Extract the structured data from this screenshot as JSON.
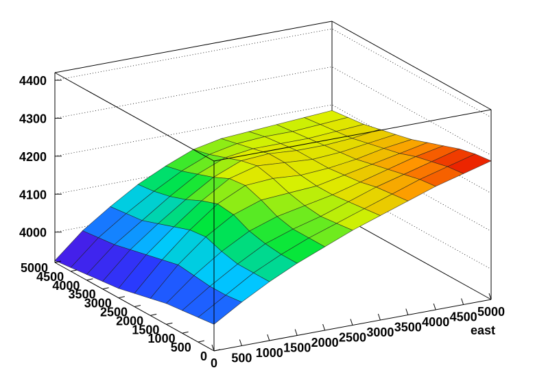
{
  "chart_data": {
    "type": "surface",
    "title": "",
    "xlabel": "east",
    "ylabel": "",
    "zlabel": "",
    "xlim": [
      0,
      5000
    ],
    "ylim": [
      0,
      5000
    ],
    "zlim": [
      3920,
      4420
    ],
    "x_ticks": [
      "0",
      "500",
      "1000",
      "1500",
      "2000",
      "2500",
      "3000",
      "3500",
      "4000",
      "4500",
      "5000"
    ],
    "y_ticks": [
      "0",
      "500",
      "1000",
      "1500",
      "2000",
      "2500",
      "3000",
      "3500",
      "4000",
      "4500",
      "5000"
    ],
    "z_ticks": [
      "4000",
      "4100",
      "4200",
      "4300",
      "4400"
    ],
    "x": [
      0,
      500,
      1000,
      1500,
      2000,
      2500,
      3000,
      3500,
      4000,
      4500,
      5000
    ],
    "y": [
      0,
      500,
      1000,
      1500,
      2000,
      2500,
      3000,
      3500,
      4000,
      4500,
      5000
    ],
    "z": [
      [
        3990,
        4035,
        4075,
        4110,
        4140,
        4170,
        4195,
        4220,
        4245,
        4265,
        4285
      ],
      [
        3985,
        4030,
        4075,
        4110,
        4140,
        4165,
        4190,
        4215,
        4240,
        4260,
        4280
      ],
      [
        3980,
        4030,
        4075,
        4115,
        4140,
        4160,
        4185,
        4210,
        4230,
        4250,
        4270
      ],
      [
        3975,
        4035,
        4085,
        4125,
        4150,
        4165,
        4180,
        4200,
        4220,
        4240,
        4255
      ],
      [
        3965,
        4040,
        4100,
        4145,
        4170,
        4175,
        4180,
        4195,
        4210,
        4225,
        4240
      ],
      [
        3955,
        4030,
        4095,
        4150,
        4185,
        4190,
        4185,
        4190,
        4200,
        4215,
        4225
      ],
      [
        3945,
        4020,
        4080,
        4135,
        4180,
        4200,
        4195,
        4190,
        4195,
        4205,
        4215
      ],
      [
        3940,
        4010,
        4065,
        4115,
        4160,
        4190,
        4195,
        4190,
        4190,
        4195,
        4205
      ],
      [
        3935,
        4000,
        4050,
        4100,
        4145,
        4175,
        4185,
        4185,
        4185,
        4190,
        4195
      ],
      [
        3930,
        3995,
        4045,
        4090,
        4130,
        4160,
        4175,
        4180,
        4180,
        4185,
        4190
      ],
      [
        3925,
        3990,
        4040,
        4085,
        4120,
        4150,
        4165,
        4170,
        4175,
        4180,
        4185
      ]
    ],
    "colormap": "rainbow",
    "grid": true,
    "legend": "none"
  }
}
